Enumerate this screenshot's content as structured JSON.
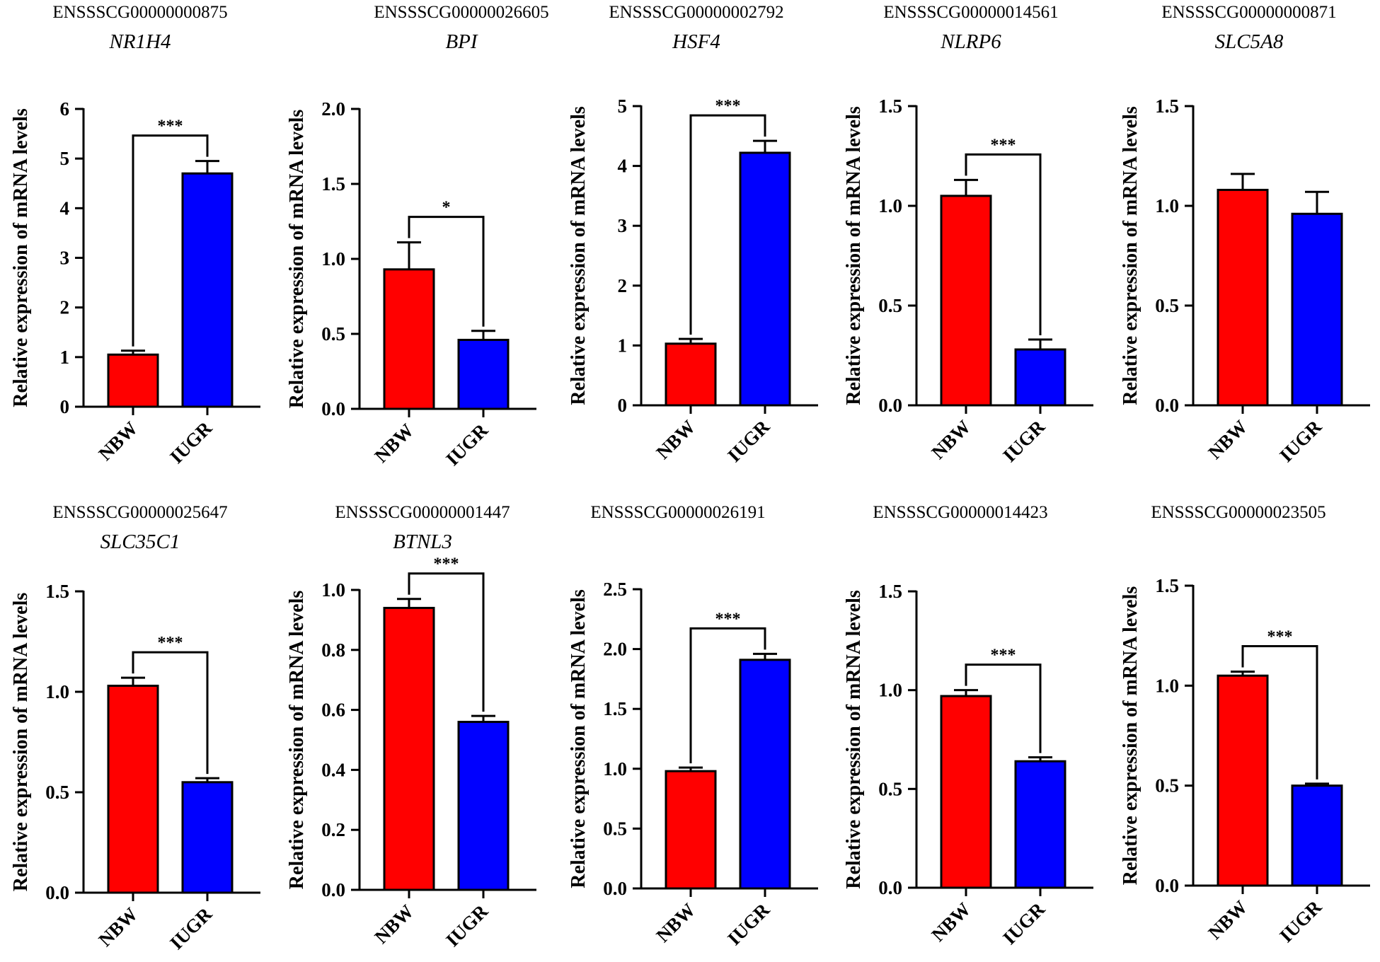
{
  "colors": {
    "nbw": "#ff0000",
    "iugr": "#0000ff",
    "axis": "#000000"
  },
  "chart_data": [
    {
      "type": "bar",
      "id": "ENSSSCG00000000875",
      "gene": "NR1H4",
      "ylabel": "Relative expression of mRNA levels",
      "categories": [
        "NBW",
        "IUGR"
      ],
      "values": [
        1.05,
        4.7
      ],
      "errors": [
        0.08,
        0.25
      ],
      "ylim": [
        0,
        6
      ],
      "yticks": [
        "0",
        "1",
        "2",
        "3",
        "4",
        "5",
        "6"
      ],
      "significance": "***"
    },
    {
      "type": "bar",
      "id": "ENSSSCG00000026605",
      "gene": "BPI",
      "ylabel": "Relative expression of mRNA levels",
      "categories": [
        "NBW",
        "IUGR"
      ],
      "values": [
        0.93,
        0.46
      ],
      "errors": [
        0.18,
        0.06
      ],
      "ylim": [
        0,
        2.0
      ],
      "yticks": [
        "0.0",
        "0.5",
        "1.0",
        "1.5",
        "2.0"
      ],
      "significance": "*"
    },
    {
      "type": "bar",
      "id": "ENSSSCG00000002792",
      "gene": "HSF4",
      "ylabel": "Relative expression of mRNA levels",
      "categories": [
        "NBW",
        "IUGR"
      ],
      "values": [
        1.03,
        4.22
      ],
      "errors": [
        0.08,
        0.2
      ],
      "ylim": [
        0,
        5
      ],
      "yticks": [
        "0",
        "1",
        "2",
        "3",
        "4",
        "5"
      ],
      "significance": "***"
    },
    {
      "type": "bar",
      "id": "ENSSSCG00000014561",
      "gene": "NLRP6",
      "ylabel": "Relative expression of mRNA levels",
      "categories": [
        "NBW",
        "IUGR"
      ],
      "values": [
        1.05,
        0.28
      ],
      "errors": [
        0.08,
        0.05
      ],
      "ylim": [
        0,
        1.5
      ],
      "yticks": [
        "0.0",
        "0.5",
        "1.0",
        "1.5"
      ],
      "significance": "***"
    },
    {
      "type": "bar",
      "id": "ENSSSCG00000000871",
      "gene": "SLC5A8",
      "ylabel": "Relative expression of mRNA levels",
      "categories": [
        "NBW",
        "IUGR"
      ],
      "values": [
        1.08,
        0.96
      ],
      "errors": [
        0.08,
        0.11
      ],
      "ylim": [
        0,
        1.5
      ],
      "yticks": [
        "0.0",
        "0.5",
        "1.0",
        "1.5"
      ],
      "significance": ""
    },
    {
      "type": "bar",
      "id": "ENSSSCG00000025647",
      "gene": "SLC35C1",
      "ylabel": "Relative expression of mRNA levels",
      "categories": [
        "NBW",
        "IUGR"
      ],
      "values": [
        1.03,
        0.55
      ],
      "errors": [
        0.04,
        0.02
      ],
      "ylim": [
        0,
        1.5
      ],
      "yticks": [
        "0.0",
        "0.5",
        "1.0",
        "1.5"
      ],
      "significance": "***"
    },
    {
      "type": "bar",
      "id": "ENSSSCG00000001447",
      "gene": "BTNL3",
      "ylabel": "Relative expression of mRNA levels",
      "categories": [
        "NBW",
        "IUGR"
      ],
      "values": [
        0.94,
        0.56
      ],
      "errors": [
        0.03,
        0.02
      ],
      "ylim": [
        0,
        1.0
      ],
      "yticks": [
        "0.0",
        "0.2",
        "0.4",
        "0.6",
        "0.8",
        "1.0"
      ],
      "significance": "***"
    },
    {
      "type": "bar",
      "id": "ENSSSCG00000026191",
      "gene": "",
      "ylabel": "Relative expression of mRNA levels",
      "categories": [
        "NBW",
        "IUGR"
      ],
      "values": [
        0.98,
        1.91
      ],
      "errors": [
        0.03,
        0.05
      ],
      "ylim": [
        0,
        2.5
      ],
      "yticks": [
        "0.0",
        "0.5",
        "1.0",
        "1.5",
        "2.0",
        "2.5"
      ],
      "significance": "***"
    },
    {
      "type": "bar",
      "id": "ENSSSCG00000014423",
      "gene": "",
      "ylabel": "Relative expression of mRNA levels",
      "categories": [
        "NBW",
        "IUGR"
      ],
      "values": [
        0.97,
        0.64
      ],
      "errors": [
        0.03,
        0.02
      ],
      "ylim": [
        0,
        1.5
      ],
      "yticks": [
        "0.0",
        "0.5",
        "1.0",
        "1.5"
      ],
      "significance": "***"
    },
    {
      "type": "bar",
      "id": "ENSSSCG00000023505",
      "gene": "",
      "ylabel": "Relative expression of mRNA levels",
      "categories": [
        "NBW",
        "IUGR"
      ],
      "values": [
        1.05,
        0.5
      ],
      "errors": [
        0.02,
        0.01
      ],
      "ylim": [
        0,
        1.5
      ],
      "yticks": [
        "0.0",
        "0.5",
        "1.0",
        "1.5"
      ],
      "significance": "***"
    }
  ]
}
